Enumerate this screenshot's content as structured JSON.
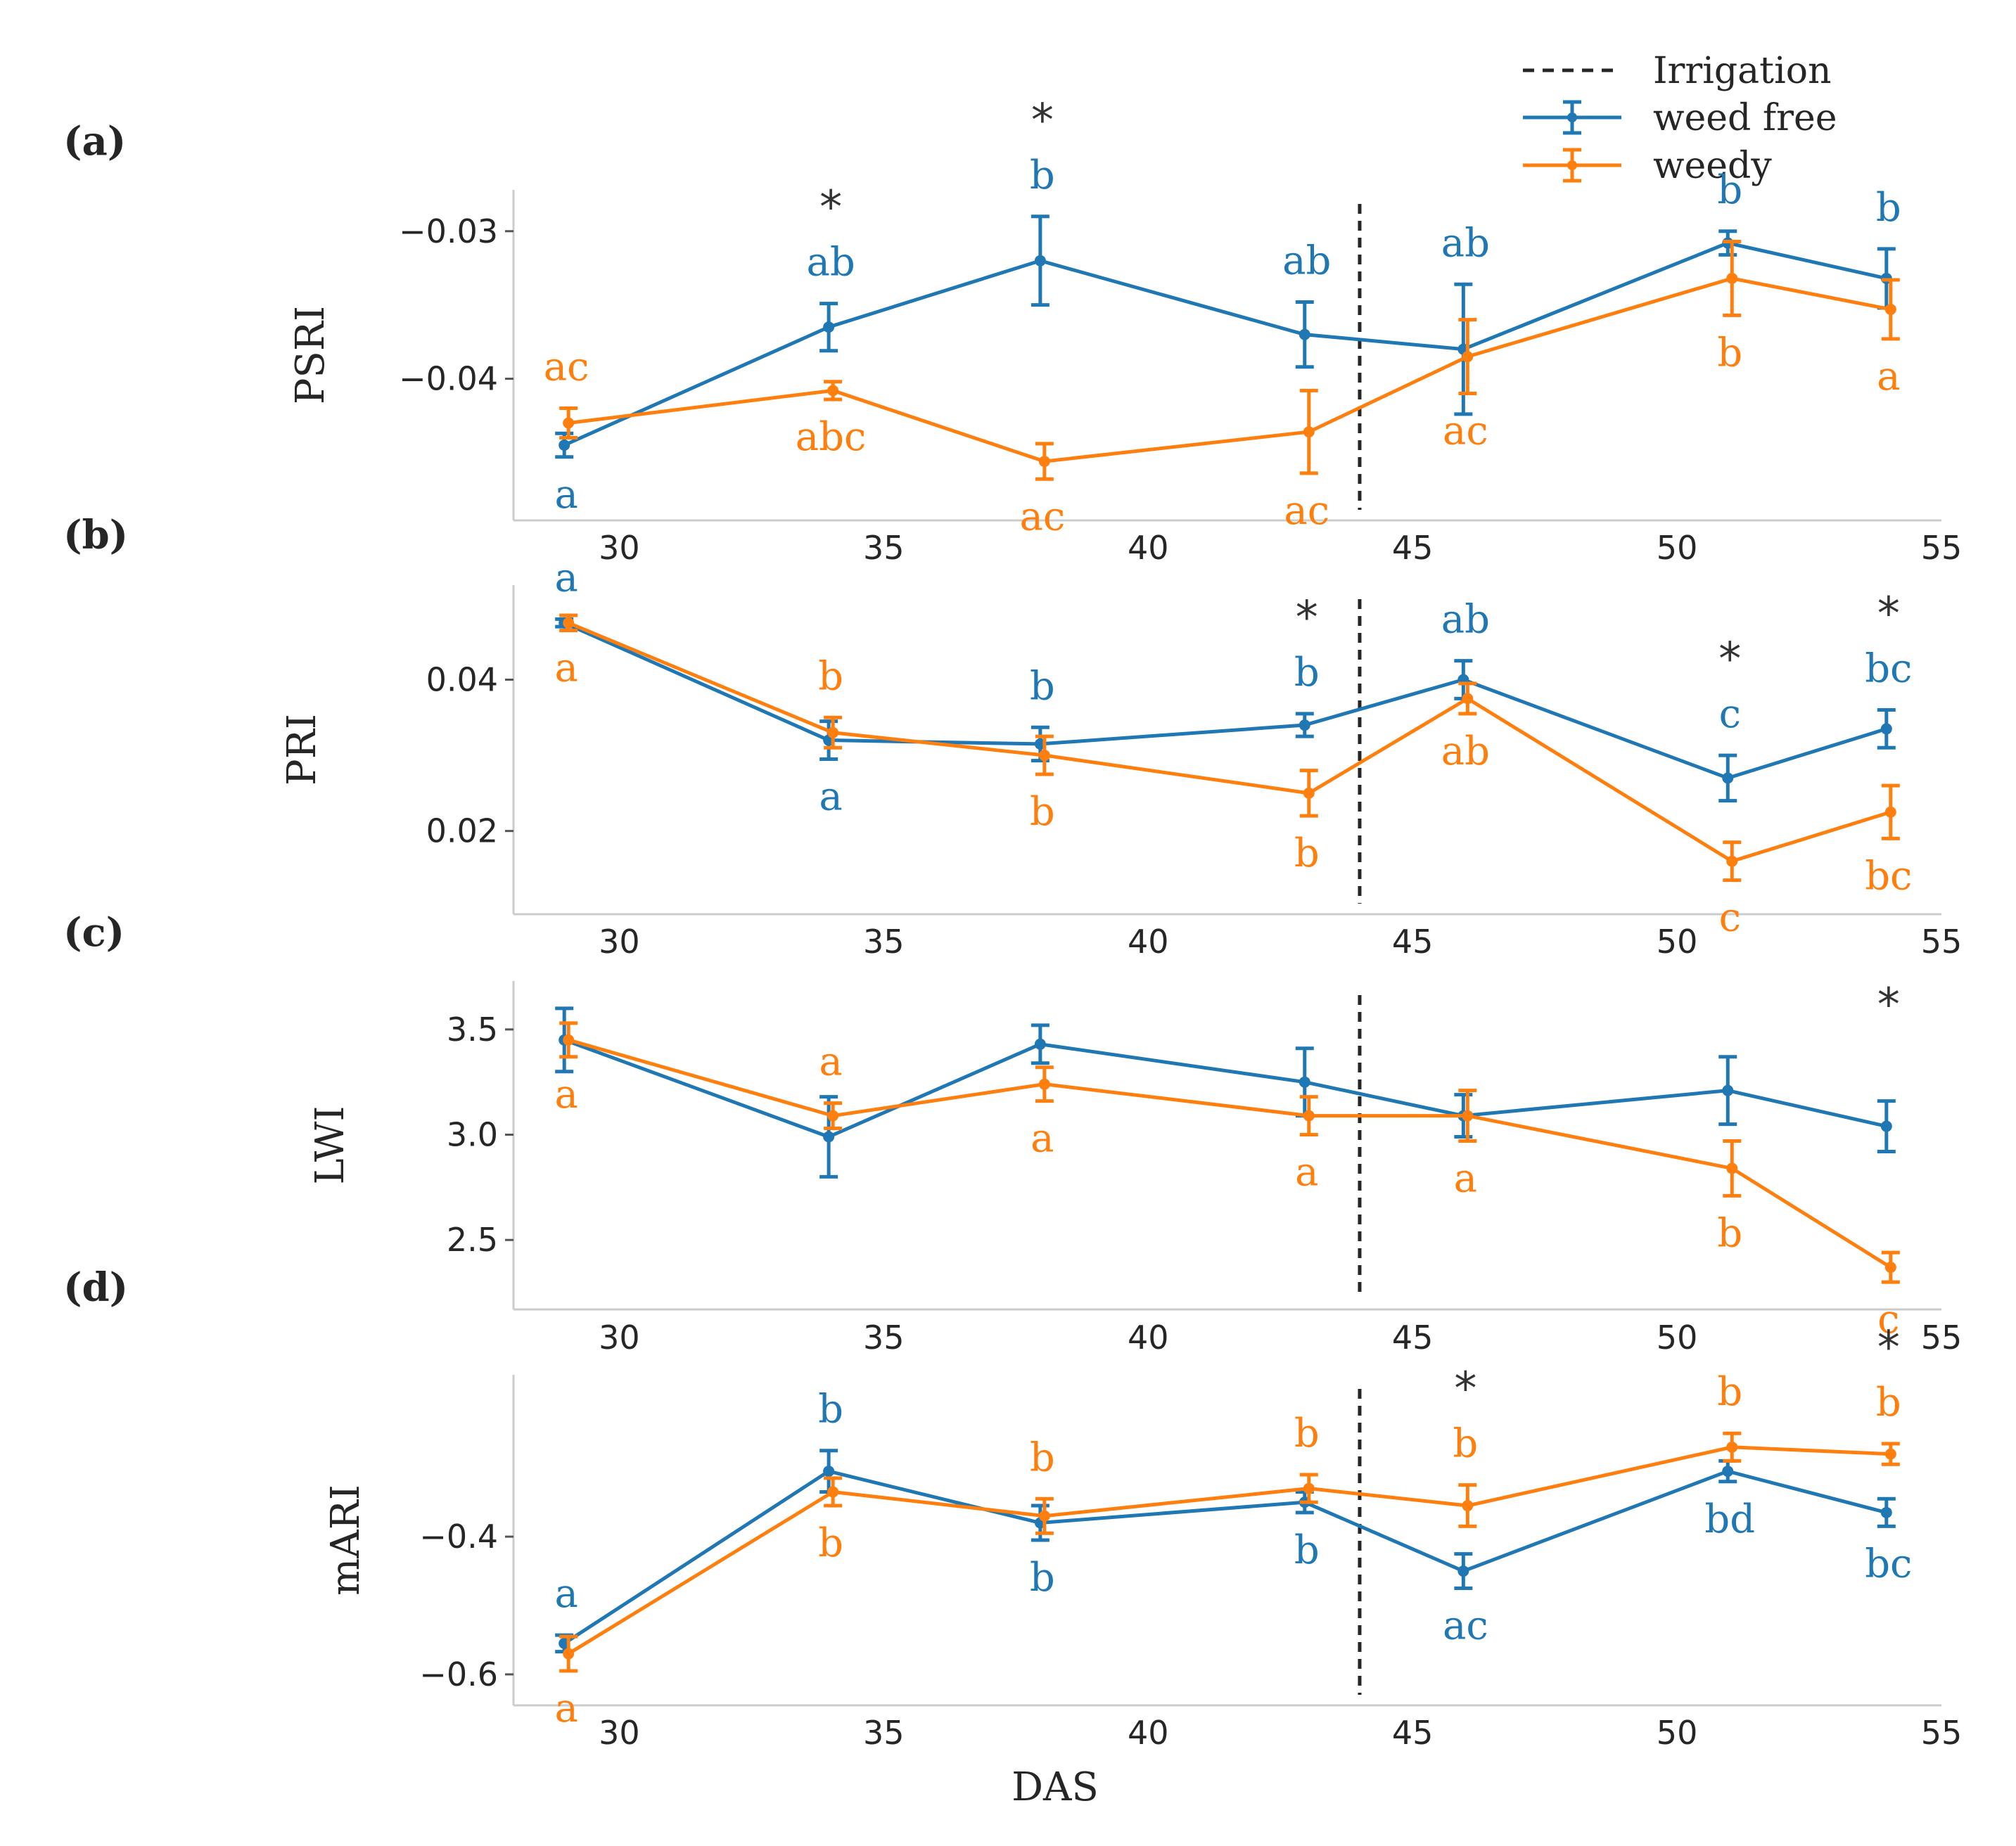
{
  "figure": {
    "xlabel": "DAS"
  },
  "legend": {
    "irrigation_label": "Irrigation",
    "series_labels": [
      "weed free",
      "weedy"
    ]
  },
  "colors": {
    "weed_free": "#1f77b4",
    "weedy": "#ff7f0e",
    "irrigation": "#262626"
  },
  "chart_data": [
    {
      "type": "line",
      "panel_label": "(a)",
      "ylabel": "PSRI",
      "xlim": [
        28,
        55
      ],
      "ylim": [
        -0.0496,
        -0.0272
      ],
      "xticks": [
        30,
        35,
        40,
        45,
        50,
        55
      ],
      "yticks": [
        -0.03,
        -0.04
      ],
      "ytick_labels": [
        "−0.03",
        "−0.04"
      ],
      "irrigation_x": 44,
      "x": [
        29,
        34,
        38,
        43,
        46,
        51,
        54
      ],
      "series": [
        {
          "name": "weed free",
          "values": [
            -0.0445,
            -0.0365,
            -0.032,
            -0.037,
            -0.038,
            -0.0308,
            -0.0332
          ],
          "errors": [
            0.0008,
            0.0016,
            0.003,
            0.0022,
            0.0044,
            0.0008,
            0.002
          ],
          "letters": [
            "a",
            "ab",
            "b",
            "ab",
            "ab",
            "b",
            "b"
          ]
        },
        {
          "name": "weedy",
          "values": [
            -0.043,
            -0.0408,
            -0.0456,
            -0.0436,
            -0.0385,
            -0.0332,
            -0.0353
          ],
          "errors": [
            0.001,
            0.0006,
            0.0012,
            0.0028,
            0.0025,
            0.0025,
            0.002
          ],
          "letters": [
            "ac",
            "abc",
            "ac",
            "ac",
            "ac",
            "b",
            "a"
          ]
        }
      ],
      "stars_at": [
        34,
        38
      ]
    },
    {
      "type": "line",
      "panel_label": "(b)",
      "ylabel": "PRI",
      "xlim": [
        28,
        55
      ],
      "ylim": [
        0.009,
        0.0525
      ],
      "xticks": [
        30,
        35,
        40,
        45,
        50,
        55
      ],
      "yticks": [
        0.04,
        0.02
      ],
      "ytick_labels": [
        "0.04",
        "0.02"
      ],
      "irrigation_x": 44,
      "x": [
        29,
        34,
        38,
        43,
        46,
        51,
        54
      ],
      "series": [
        {
          "name": "weed free",
          "values": [
            0.0475,
            0.032,
            0.0315,
            0.034,
            0.04,
            0.027,
            0.0335
          ],
          "errors": [
            0.0005,
            0.0025,
            0.0022,
            0.0015,
            0.0025,
            0.003,
            0.0025
          ],
          "letters": [
            "a",
            "a",
            "b",
            "b",
            "ab",
            "c",
            "bc"
          ]
        },
        {
          "name": "weedy",
          "values": [
            0.0475,
            0.033,
            0.03,
            0.025,
            0.0375,
            0.016,
            0.0225
          ],
          "errors": [
            0.001,
            0.002,
            0.0025,
            0.003,
            0.002,
            0.0025,
            0.0035
          ],
          "letters": [
            "a",
            "b",
            "b",
            "b",
            "ab",
            "c",
            "bc"
          ]
        }
      ],
      "stars_at": [
        43,
        51,
        54
      ]
    },
    {
      "type": "line",
      "panel_label": "(c)",
      "ylabel": "LWI",
      "xlim": [
        28,
        55
      ],
      "ylim": [
        2.17,
        3.73
      ],
      "xticks": [
        30,
        35,
        40,
        45,
        50,
        55
      ],
      "yticks": [
        3.5,
        3.0,
        2.5
      ],
      "ytick_labels": [
        "3.5",
        "3.0",
        "2.5"
      ],
      "irrigation_x": 44,
      "x": [
        29,
        34,
        38,
        43,
        46,
        51,
        54
      ],
      "series": [
        {
          "name": "weed free",
          "values": [
            3.45,
            2.99,
            3.43,
            3.25,
            3.09,
            3.21,
            3.04
          ],
          "errors": [
            0.15,
            0.19,
            0.09,
            0.16,
            0.1,
            0.16,
            0.12
          ],
          "letters": [
            "",
            "",
            "",
            "",
            "",
            "",
            ""
          ]
        },
        {
          "name": "weedy",
          "values": [
            3.45,
            3.09,
            3.24,
            3.09,
            3.09,
            2.84,
            2.37
          ],
          "errors": [
            0.08,
            0.06,
            0.08,
            0.09,
            0.12,
            0.13,
            0.07
          ],
          "letters": [
            "a",
            "a",
            "a",
            "a",
            "a",
            "b",
            "c"
          ]
        }
      ],
      "stars_at": [
        54
      ]
    },
    {
      "type": "line",
      "panel_label": "(d)",
      "ylabel": "mARI",
      "xlim": [
        28,
        55
      ],
      "ylim": [
        -0.645,
        -0.165
      ],
      "xticks": [
        30,
        35,
        40,
        45,
        50,
        55
      ],
      "yticks": [
        -0.4,
        -0.6
      ],
      "ytick_labels": [
        "−0.4",
        "−0.6"
      ],
      "irrigation_x": 44,
      "x": [
        29,
        34,
        38,
        43,
        46,
        51,
        54
      ],
      "series": [
        {
          "name": "weed free",
          "values": [
            -0.555,
            -0.305,
            -0.38,
            -0.35,
            -0.45,
            -0.305,
            -0.365
          ],
          "errors": [
            0.012,
            0.03,
            0.025,
            0.015,
            0.025,
            0.015,
            0.02
          ],
          "letters": [
            "a",
            "b",
            "b",
            "b",
            "ac",
            "bd",
            "bc"
          ]
        },
        {
          "name": "weedy",
          "values": [
            -0.57,
            -0.335,
            -0.37,
            -0.33,
            -0.355,
            -0.27,
            -0.28
          ],
          "errors": [
            0.025,
            0.02,
            0.025,
            0.02,
            0.03,
            0.02,
            0.015
          ],
          "letters": [
            "a",
            "b",
            "b",
            "b",
            "b",
            "b",
            "b"
          ]
        }
      ],
      "stars_at": [
        46,
        54
      ]
    }
  ]
}
